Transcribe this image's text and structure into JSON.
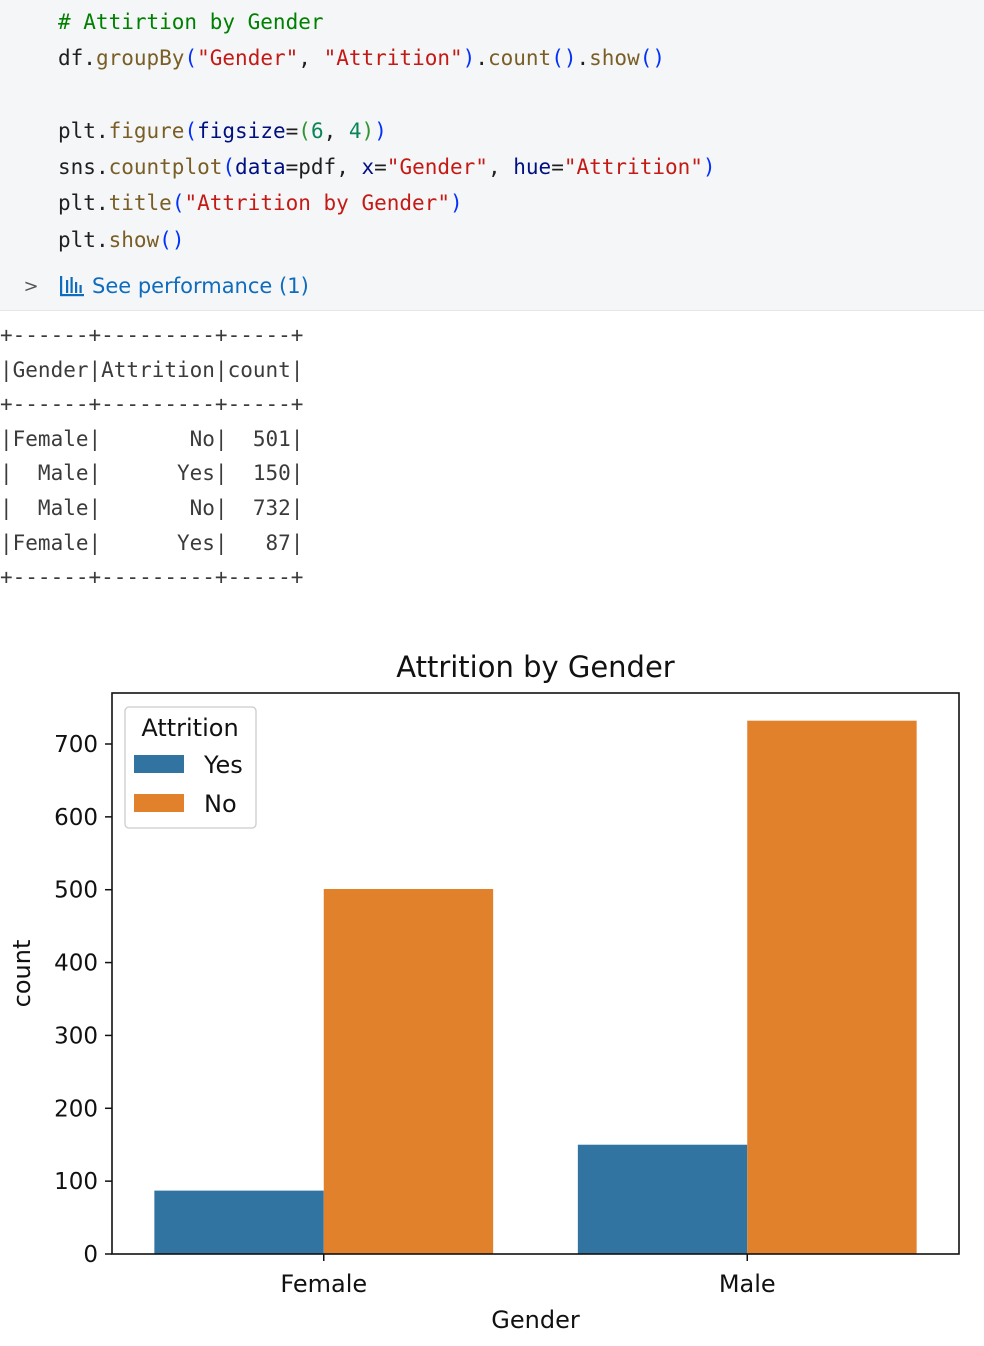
{
  "code_cell": {
    "lines": [
      [
        {
          "t": "# Attirtion by Gender",
          "c": "tk-comment"
        }
      ],
      [
        {
          "t": "df",
          "c": ""
        },
        {
          "t": ".",
          "c": ""
        },
        {
          "t": "groupBy",
          "c": "tk-fn"
        },
        {
          "t": "(",
          "c": "tk-p1"
        },
        {
          "t": "\"Gender\"",
          "c": "tk-str"
        },
        {
          "t": ", ",
          "c": ""
        },
        {
          "t": "\"Attrition\"",
          "c": "tk-str"
        },
        {
          "t": ")",
          "c": "tk-p1"
        },
        {
          "t": ".",
          "c": ""
        },
        {
          "t": "count",
          "c": "tk-fn"
        },
        {
          "t": "()",
          "c": "tk-p1"
        },
        {
          "t": ".",
          "c": ""
        },
        {
          "t": "show",
          "c": "tk-fn"
        },
        {
          "t": "()",
          "c": "tk-p1"
        }
      ],
      [],
      [
        {
          "t": "plt",
          "c": ""
        },
        {
          "t": ".",
          "c": ""
        },
        {
          "t": "figure",
          "c": "tk-fn"
        },
        {
          "t": "(",
          "c": "tk-p1"
        },
        {
          "t": "figsize",
          "c": "tk-kw"
        },
        {
          "t": "=",
          "c": ""
        },
        {
          "t": "(",
          "c": "tk-p2"
        },
        {
          "t": "6",
          "c": "tk-num"
        },
        {
          "t": ", ",
          "c": ""
        },
        {
          "t": "4",
          "c": "tk-num"
        },
        {
          "t": ")",
          "c": "tk-p2"
        },
        {
          "t": ")",
          "c": "tk-p1"
        }
      ],
      [
        {
          "t": "sns",
          "c": ""
        },
        {
          "t": ".",
          "c": ""
        },
        {
          "t": "countplot",
          "c": "tk-fn"
        },
        {
          "t": "(",
          "c": "tk-p1"
        },
        {
          "t": "data",
          "c": "tk-kw"
        },
        {
          "t": "=pdf, ",
          "c": ""
        },
        {
          "t": "x",
          "c": "tk-kw"
        },
        {
          "t": "=",
          "c": ""
        },
        {
          "t": "\"Gender\"",
          "c": "tk-str"
        },
        {
          "t": ", ",
          "c": ""
        },
        {
          "t": "hue",
          "c": "tk-kw"
        },
        {
          "t": "=",
          "c": ""
        },
        {
          "t": "\"Attrition\"",
          "c": "tk-str"
        },
        {
          "t": ")",
          "c": "tk-p1"
        }
      ],
      [
        {
          "t": "plt",
          "c": ""
        },
        {
          "t": ".",
          "c": ""
        },
        {
          "t": "title",
          "c": "tk-fn"
        },
        {
          "t": "(",
          "c": "tk-p1"
        },
        {
          "t": "\"Attrition by Gender\"",
          "c": "tk-str"
        },
        {
          "t": ")",
          "c": "tk-p1"
        }
      ],
      [
        {
          "t": "plt",
          "c": ""
        },
        {
          "t": ".",
          "c": ""
        },
        {
          "t": "show",
          "c": "tk-fn"
        },
        {
          "t": "()",
          "c": "tk-p1"
        }
      ]
    ],
    "perf_chevron": ">",
    "perf_icon": "bar-chart-icon",
    "perf_label": "See performance (1)"
  },
  "output_table": {
    "lines": [
      "+------+---------+-----+",
      "|Gender|Attrition|count|",
      "+------+---------+-----+",
      "|Female|       No|  501|",
      "|  Male|      Yes|  150|",
      "|  Male|       No|  732|",
      "|Female|      Yes|   87|",
      "+------+---------+-----+"
    ]
  },
  "chart_data": {
    "type": "bar",
    "title": "Attrition by Gender",
    "xlabel": "Gender",
    "ylabel": "count",
    "categories": [
      "Female",
      "Male"
    ],
    "series": [
      {
        "name": "Yes",
        "values": [
          87,
          150
        ],
        "color": "#3274a1"
      },
      {
        "name": "No",
        "values": [
          501,
          732
        ],
        "color": "#e1812c"
      }
    ],
    "ylim": [
      0,
      770
    ],
    "yticks": [
      0,
      100,
      200,
      300,
      400,
      500,
      600,
      700
    ],
    "legend": {
      "title": "Attrition",
      "placement": "top-left"
    },
    "grid": false
  }
}
